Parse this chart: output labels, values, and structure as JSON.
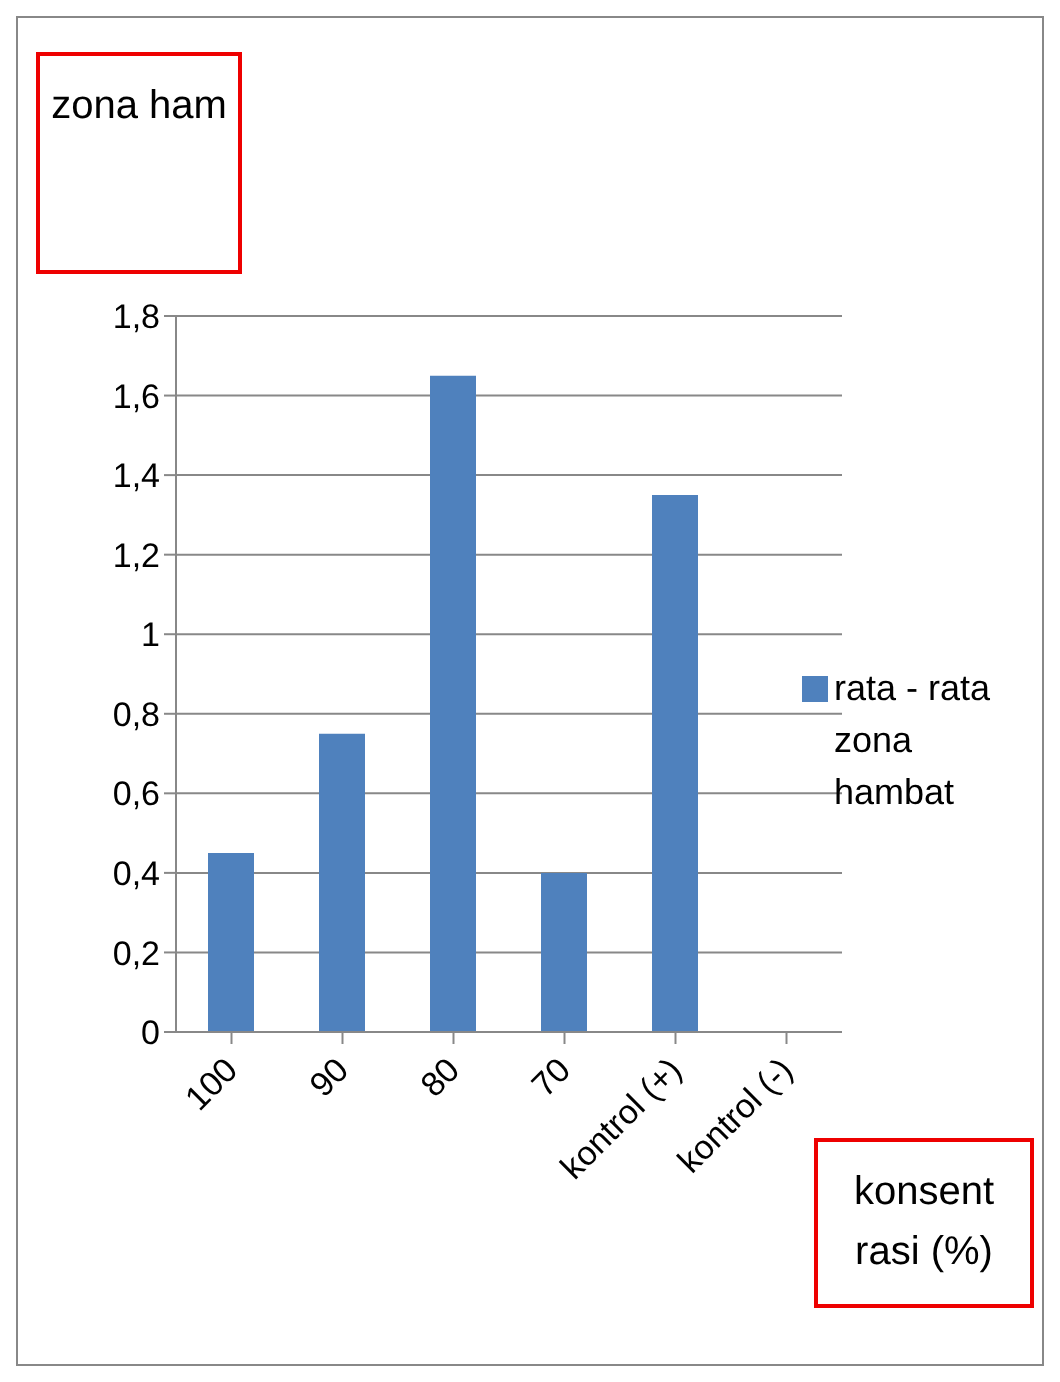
{
  "chart_data": {
    "type": "bar",
    "ylabel": "zona ham",
    "xlabel": "konsent rasi (%)",
    "categories": [
      "100",
      "90",
      "80",
      "70",
      "kontrol (+)",
      "kontrol (-)"
    ],
    "series": [
      {
        "name": "rata - rata zona hambat",
        "color": "#4f81bd",
        "values": [
          0.45,
          0.75,
          1.65,
          0.4,
          1.35,
          0
        ]
      }
    ],
    "ylim": [
      0,
      1.8
    ],
    "yticks": [
      {
        "value": 0,
        "label": "0"
      },
      {
        "value": 0.2,
        "label": "0,2"
      },
      {
        "value": 0.4,
        "label": "0,4"
      },
      {
        "value": 0.6,
        "label": "0,6"
      },
      {
        "value": 0.8,
        "label": "0,8"
      },
      {
        "value": 1,
        "label": "1"
      },
      {
        "value": 1.2,
        "label": "1,2"
      },
      {
        "value": 1.4,
        "label": "1,4"
      },
      {
        "value": 1.6,
        "label": "1,6"
      },
      {
        "value": 1.8,
        "label": "1,8"
      }
    ],
    "grid": "y",
    "legend": "right"
  }
}
